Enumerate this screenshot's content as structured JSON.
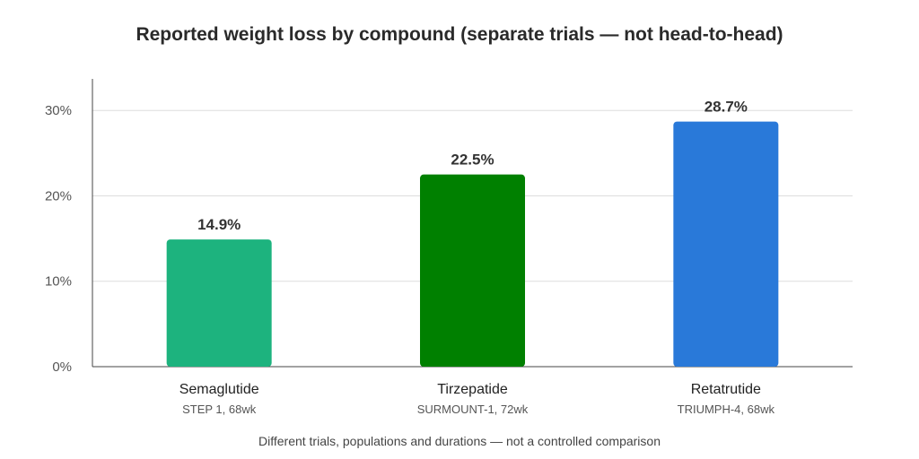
{
  "chart_data": {
    "type": "bar",
    "title": "Reported weight loss by compound (separate trials — not head-to-head)",
    "categories": [
      "Semaglutide",
      "Tirzepatide",
      "Retatrutide"
    ],
    "subcategories": [
      "STEP 1, 68wk",
      "SURMOUNT-1, 72wk",
      "TRIUMPH-4, 68wk"
    ],
    "values": [
      14.9,
      22.5,
      28.7
    ],
    "value_labels": [
      "14.9%",
      "22.5%",
      "28.7%"
    ],
    "colors": [
      "#1db37e",
      "#008000",
      "#2979d9"
    ],
    "yticks": [
      0,
      10,
      20,
      30
    ],
    "ytick_labels": [
      "0%",
      "10%",
      "20%",
      "30%"
    ],
    "ylim": [
      0,
      33.7
    ],
    "grid": true,
    "xlabel": "",
    "ylabel": "",
    "footnote": "Different trials, populations and durations — not a controlled comparison"
  }
}
